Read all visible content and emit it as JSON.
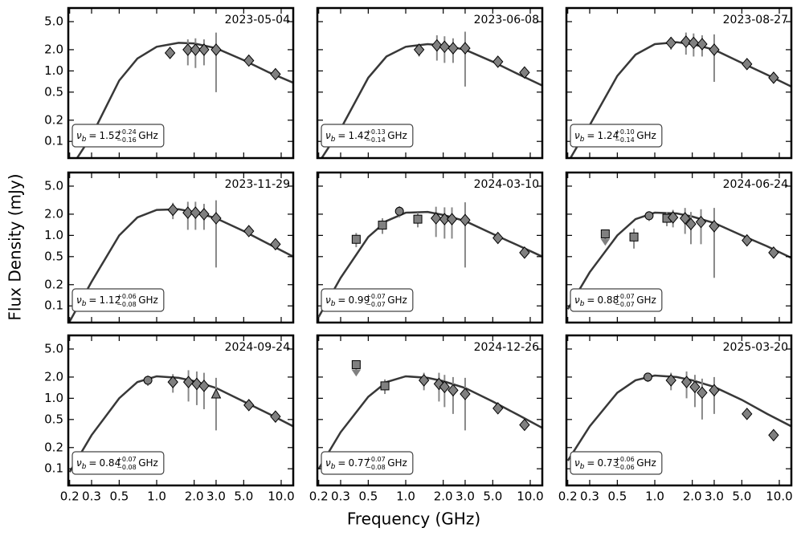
{
  "chart_data": {
    "type": "scatter",
    "xlabel": "Frequency (GHz)",
    "ylabel": "Flux Density (mJy)",
    "xscale": "log",
    "yscale": "log",
    "xlim": [
      0.195,
      12.5
    ],
    "ylim": [
      0.058,
      7.8
    ],
    "xticks": [
      0.2,
      0.3,
      0.5,
      {
        "value": 1,
        "label": "1.0"
      },
      {
        "value": 2,
        "label": "2.0"
      },
      {
        "value": 3,
        "label": "3.0"
      },
      {
        "value": 5,
        "label": "5.0"
      },
      {
        "value": 10,
        "label": "10.0"
      }
    ],
    "yticks": [
      0.1,
      0.2,
      0.5,
      {
        "value": 1,
        "label": "1.0"
      },
      {
        "value": 2,
        "label": "2.0"
      },
      {
        "value": 5,
        "label": "5.0"
      }
    ],
    "marker_color": "#808080",
    "edge_color": "#000000",
    "error_color": "#888888",
    "model_color": "#222222",
    "model_x": [
      0.2,
      0.3,
      0.5,
      0.7,
      1,
      1.5,
      2,
      3,
      5,
      8,
      12.5
    ],
    "panels": [
      {
        "title": "2023-05-04",
        "annotation": {
          "symbol": "ν",
          "subscript": "b",
          "relation": "=",
          "value": 1.52,
          "plus": "+0.24",
          "minus": "−0.16",
          "unit": "GHz"
        },
        "model_y": [
          0.04,
          0.12,
          0.73,
          1.5,
          2.2,
          2.5,
          2.45,
          2.1,
          1.42,
          0.95,
          0.68
        ],
        "series": [
          {
            "marker": "diamond",
            "x": [
              1.28,
              1.78,
              2.05,
              2.4,
              3.0,
              5.5,
              9.0
            ],
            "y": [
              1.8,
              2.0,
              2.0,
              2.0,
              2.0,
              1.4,
              0.9
            ],
            "err": [
              0.3,
              0.8,
              0.9,
              0.8,
              1.5,
              0.15,
              0.1
            ]
          }
        ]
      },
      {
        "title": "2023-06-08",
        "annotation": {
          "symbol": "ν",
          "subscript": "b",
          "relation": "=",
          "value": 1.42,
          "plus": "+0.13",
          "minus": "−0.14",
          "unit": "GHz"
        },
        "model_y": [
          0.05,
          0.15,
          0.8,
          1.6,
          2.2,
          2.4,
          2.3,
          2.0,
          1.35,
          0.9,
          0.62
        ],
        "series": [
          {
            "marker": "diamond",
            "x": [
              1.28,
              1.78,
              2.05,
              2.4,
              3.0,
              5.5,
              9.0
            ],
            "y": [
              2.0,
              2.3,
              2.2,
              2.1,
              2.1,
              1.35,
              0.95
            ],
            "err": [
              0.4,
              0.9,
              0.9,
              0.8,
              1.5,
              0.15,
              0.1
            ]
          }
        ]
      },
      {
        "title": "2023-08-27",
        "annotation": {
          "symbol": "ν",
          "subscript": "b",
          "relation": "=",
          "value": 1.24,
          "plus": "+0.10",
          "minus": "−0.14",
          "unit": "GHz"
        },
        "model_y": [
          0.05,
          0.17,
          0.85,
          1.7,
          2.4,
          2.55,
          2.4,
          2.0,
          1.3,
          0.88,
          0.6
        ],
        "series": [
          {
            "marker": "diamond",
            "x": [
              1.35,
              1.78,
              2.05,
              2.4,
              3.0,
              5.5,
              9.0
            ],
            "y": [
              2.5,
              2.6,
              2.5,
              2.4,
              2.0,
              1.25,
              0.8
            ],
            "err": [
              0.5,
              0.9,
              0.9,
              0.8,
              1.3,
              0.15,
              0.1
            ]
          }
        ]
      },
      {
        "title": "2023-11-29",
        "annotation": {
          "symbol": "ν",
          "subscript": "b",
          "relation": "=",
          "value": 1.12,
          "plus": "+0.06",
          "minus": "−0.08",
          "unit": "GHz"
        },
        "model_y": [
          0.06,
          0.22,
          1.0,
          1.8,
          2.3,
          2.35,
          2.15,
          1.75,
          1.15,
          0.75,
          0.5
        ],
        "series": [
          {
            "marker": "diamond",
            "x": [
              1.35,
              1.78,
              2.05,
              2.4,
              3.0,
              5.5,
              9.0
            ],
            "y": [
              2.3,
              2.1,
              2.1,
              2.0,
              1.75,
              1.15,
              0.75
            ],
            "err": [
              0.6,
              0.9,
              0.9,
              0.8,
              1.4,
              0.15,
              0.1
            ]
          }
        ]
      },
      {
        "title": "2024-03-10",
        "annotation": {
          "symbol": "ν",
          "subscript": "b",
          "relation": "=",
          "value": 0.99,
          "plus": "+0.07",
          "minus": "−0.07",
          "unit": "GHz"
        },
        "model_y": [
          0.07,
          0.25,
          0.95,
          1.6,
          2.1,
          2.15,
          1.95,
          1.6,
          1.05,
          0.72,
          0.5
        ],
        "series": [
          {
            "marker": "square",
            "x": [
              0.4,
              0.65,
              1.25
            ],
            "y": [
              0.88,
              1.4,
              1.7
            ],
            "err": [
              0.2,
              0.35,
              0.4
            ]
          },
          {
            "marker": "circle",
            "x": [
              0.89
            ],
            "y": [
              2.2
            ],
            "err": [
              0.4
            ]
          },
          {
            "marker": "diamond",
            "x": [
              1.75,
              2.05,
              2.35,
              3.0,
              5.5,
              9.0
            ],
            "y": [
              1.75,
              1.7,
              1.7,
              1.65,
              0.92,
              0.57
            ],
            "err": [
              0.8,
              0.8,
              0.8,
              1.3,
              0.12,
              0.08
            ]
          }
        ]
      },
      {
        "title": "2024-06-24",
        "annotation": {
          "symbol": "ν",
          "subscript": "b",
          "relation": "=",
          "value": 0.88,
          "plus": "+0.07",
          "minus": "−0.07",
          "unit": "GHz"
        },
        "model_y": [
          0.09,
          0.3,
          1.0,
          1.7,
          2.1,
          2.05,
          1.85,
          1.5,
          1.0,
          0.7,
          0.48
        ],
        "series": [
          {
            "marker": "square",
            "upper_limit": true,
            "x": [
              0.4
            ],
            "y": [
              1.05
            ]
          },
          {
            "marker": "square",
            "x": [
              0.68,
              1.25
            ],
            "y": [
              0.95,
              1.75
            ],
            "err": [
              0.3,
              0.4
            ]
          },
          {
            "marker": "circle",
            "x": [
              0.9
            ],
            "y": [
              1.9
            ],
            "err": [
              0.3
            ]
          },
          {
            "marker": "diamond",
            "x": [
              1.4,
              1.75,
              1.95,
              2.35,
              3.0,
              5.5,
              9.0
            ],
            "y": [
              1.8,
              1.75,
              1.45,
              1.55,
              1.35,
              0.85,
              0.57
            ],
            "err": [
              0.5,
              0.7,
              0.7,
              0.8,
              1.1,
              0.1,
              0.07
            ]
          }
        ]
      },
      {
        "title": "2024-09-24",
        "annotation": {
          "symbol": "ν",
          "subscript": "b",
          "relation": "=",
          "value": 0.84,
          "plus": "+0.07",
          "minus": "−0.08",
          "unit": "GHz"
        },
        "model_y": [
          0.09,
          0.3,
          1.0,
          1.7,
          2.05,
          1.95,
          1.75,
          1.4,
          0.9,
          0.6,
          0.4
        ],
        "series": [
          {
            "marker": "circle",
            "x": [
              0.85
            ],
            "y": [
              1.8
            ],
            "err": [
              0.3
            ]
          },
          {
            "marker": "diamond",
            "x": [
              1.35,
              1.8,
              2.1,
              2.4,
              5.5,
              9.0
            ],
            "y": [
              1.7,
              1.7,
              1.6,
              1.5,
              0.8,
              0.55
            ],
            "err": [
              0.5,
              0.8,
              0.8,
              0.8,
              0.1,
              0.06
            ]
          },
          {
            "marker": "triangle",
            "x": [
              3.0
            ],
            "y": [
              1.15
            ],
            "err": [
              0.8
            ]
          }
        ]
      },
      {
        "title": "2024-12-26",
        "annotation": {
          "symbol": "ν",
          "subscript": "b",
          "relation": "=",
          "value": 0.77,
          "plus": "+0.07",
          "minus": "−0.08",
          "unit": "GHz"
        },
        "model_y": [
          0.1,
          0.33,
          1.05,
          1.7,
          2.05,
          1.95,
          1.75,
          1.4,
          0.9,
          0.58,
          0.38
        ],
        "series": [
          {
            "marker": "square",
            "upper_limit": true,
            "x": [
              0.4
            ],
            "y": [
              3.0
            ]
          },
          {
            "marker": "square",
            "x": [
              0.68
            ],
            "y": [
              1.5
            ],
            "err": [
              0.35
            ]
          },
          {
            "marker": "diamond",
            "x": [
              1.4,
              1.85,
              2.05,
              2.4,
              3.0,
              5.5,
              9.0
            ],
            "y": [
              1.8,
              1.6,
              1.45,
              1.3,
              1.15,
              0.72,
              0.42
            ],
            "err": [
              0.5,
              0.7,
              0.7,
              0.7,
              0.8,
              0.1,
              0.06
            ]
          }
        ]
      },
      {
        "title": "2025-03-20",
        "annotation": {
          "symbol": "ν",
          "subscript": "b",
          "relation": "=",
          "value": 0.73,
          "plus": "+0.06",
          "minus": "−0.06",
          "unit": "GHz"
        },
        "model_y": [
          0.13,
          0.4,
          1.2,
          1.8,
          2.1,
          2.0,
          1.8,
          1.45,
          0.95,
          0.6,
          0.4
        ],
        "series": [
          {
            "marker": "circle",
            "x": [
              0.88
            ],
            "y": [
              2.0
            ],
            "err": [
              0.3
            ]
          },
          {
            "marker": "diamond",
            "x": [
              1.35,
              1.8,
              2.1,
              2.4,
              3.0,
              5.5,
              9.0
            ],
            "y": [
              1.8,
              1.7,
              1.45,
              1.2,
              1.3,
              0.6,
              0.3
            ],
            "err": [
              0.5,
              0.7,
              0.7,
              0.7,
              0.7,
              0.08,
              0.04
            ]
          }
        ]
      }
    ]
  }
}
